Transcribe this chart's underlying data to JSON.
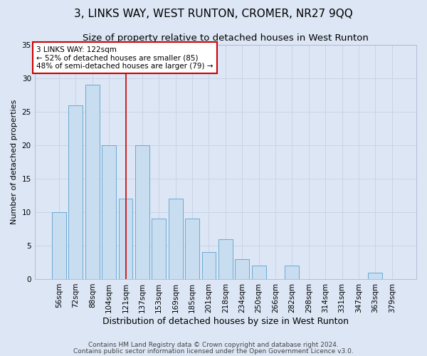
{
  "title": "3, LINKS WAY, WEST RUNTON, CROMER, NR27 9QQ",
  "subtitle": "Size of property relative to detached houses in West Runton",
  "xlabel": "Distribution of detached houses by size in West Runton",
  "ylabel": "Number of detached properties",
  "categories": [
    "56sqm",
    "72sqm",
    "88sqm",
    "104sqm",
    "121sqm",
    "137sqm",
    "153sqm",
    "169sqm",
    "185sqm",
    "201sqm",
    "218sqm",
    "234sqm",
    "250sqm",
    "266sqm",
    "282sqm",
    "298sqm",
    "314sqm",
    "331sqm",
    "347sqm",
    "363sqm",
    "379sqm"
  ],
  "values": [
    10,
    26,
    29,
    20,
    12,
    20,
    9,
    12,
    9,
    4,
    6,
    3,
    2,
    0,
    2,
    0,
    0,
    0,
    0,
    1,
    0
  ],
  "bar_color": "#c9ddf0",
  "bar_edge_color": "#6aaad4",
  "vline_x_index": 4,
  "vline_color": "#cc0000",
  "annotation_text": "3 LINKS WAY: 122sqm\n← 52% of detached houses are smaller (85)\n48% of semi-detached houses are larger (79) →",
  "annotation_box_facecolor": "#ffffff",
  "annotation_box_edgecolor": "#cc0000",
  "ylim": [
    0,
    35
  ],
  "yticks": [
    0,
    5,
    10,
    15,
    20,
    25,
    30,
    35
  ],
  "grid_color": "#c8d4e8",
  "background_color": "#dce6f5",
  "footer_line1": "Contains HM Land Registry data © Crown copyright and database right 2024.",
  "footer_line2": "Contains public sector information licensed under the Open Government Licence v3.0.",
  "title_fontsize": 11,
  "subtitle_fontsize": 9.5,
  "xlabel_fontsize": 9,
  "ylabel_fontsize": 8,
  "tick_fontsize": 7.5,
  "annotation_fontsize": 7.5,
  "footer_fontsize": 6.5
}
